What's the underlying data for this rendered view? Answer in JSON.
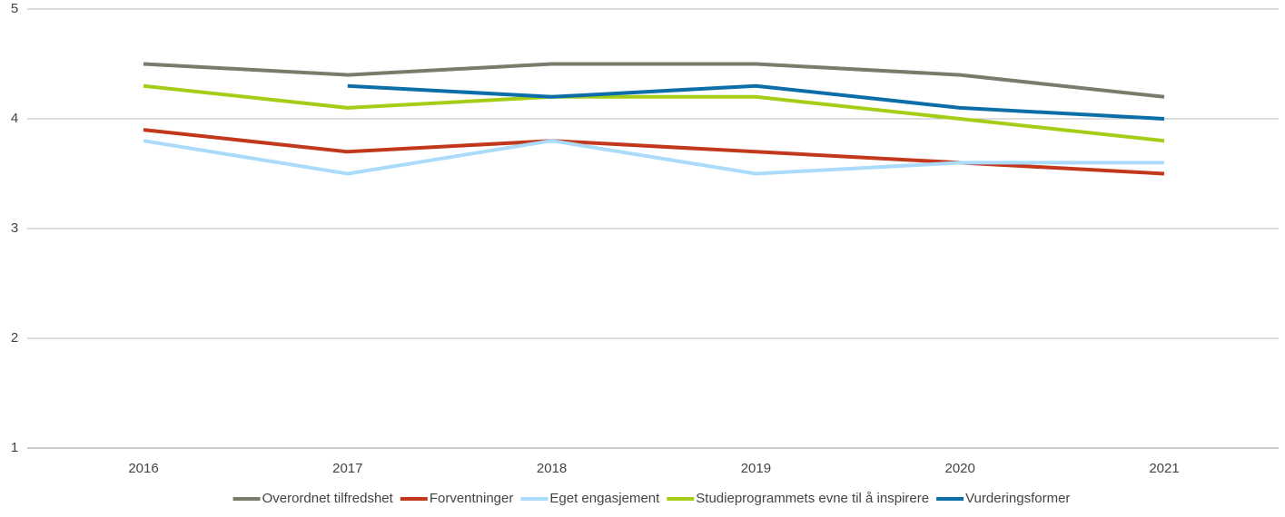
{
  "chart_data": {
    "type": "line",
    "categories": [
      "2016",
      "2017",
      "2018",
      "2019",
      "2020",
      "2021"
    ],
    "series": [
      {
        "name": "Overordnet tilfredshet",
        "color": "#7b7a6b",
        "values": [
          4.5,
          4.4,
          4.5,
          4.5,
          4.4,
          4.2
        ]
      },
      {
        "name": "Forventninger",
        "color": "#c2381c",
        "values": [
          3.9,
          3.7,
          3.8,
          3.7,
          3.6,
          3.5
        ]
      },
      {
        "name": "Eget engasjement",
        "color": "#aadbfa",
        "values": [
          3.8,
          3.5,
          3.8,
          3.5,
          3.6,
          3.6
        ]
      },
      {
        "name": "Studieprogrammets evne til å inspirere",
        "color": "#a5cd18",
        "values": [
          4.3,
          4.1,
          4.2,
          4.2,
          4.0,
          3.8
        ]
      },
      {
        "name": "Vurderingsformer",
        "color": "#0b6ea8",
        "values": [
          null,
          4.3,
          4.2,
          4.3,
          4.1,
          4.0
        ]
      }
    ],
    "ylim": [
      1,
      5
    ],
    "yticks": [
      1,
      2,
      3,
      4,
      5
    ],
    "grid": true,
    "legend": "bottom"
  }
}
